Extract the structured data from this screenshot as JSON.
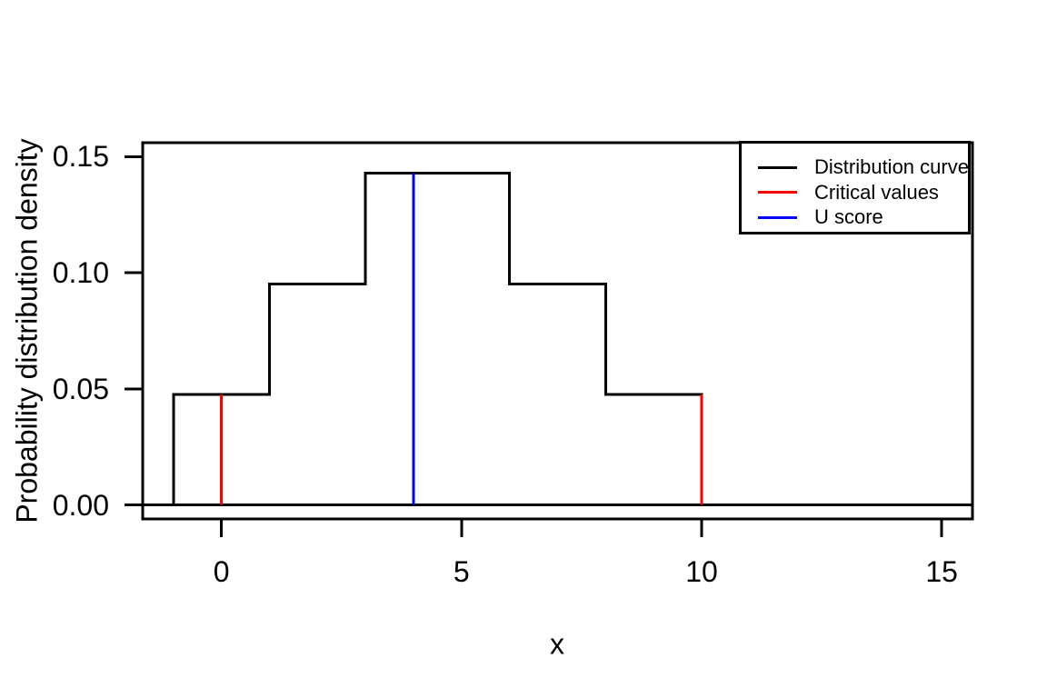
{
  "figure": {
    "background": "#ffffff",
    "title": ""
  },
  "axes": {
    "x": {
      "title": "x",
      "tick_labels": [
        "0",
        "5",
        "10",
        "15"
      ]
    },
    "y": {
      "title": "Probability distribution density",
      "tick_labels": [
        "0.00",
        "0.05",
        "0.10",
        "0.15"
      ]
    }
  },
  "legend": {
    "position": "topright",
    "items": [
      {
        "label": "Distribution curve",
        "color": "#000000",
        "icon": "line-sample"
      },
      {
        "label": "Critical values",
        "color": "#ff0000",
        "icon": "line-sample"
      },
      {
        "label": "U score",
        "color": "#0000ff",
        "icon": "line-sample"
      }
    ]
  },
  "chart_data": {
    "type": "line",
    "subtype": "step-density",
    "title": "",
    "xlabel": "x",
    "ylabel": "Probability distribution density",
    "xlim": [
      -1.64,
      15.64
    ],
    "ylim": [
      -0.006,
      0.156
    ],
    "grid": false,
    "legend_position": "topright",
    "x_ticks": {
      "values": [
        0,
        5,
        10,
        15
      ],
      "labels": [
        "0",
        "5",
        "10",
        "15"
      ]
    },
    "y_ticks": {
      "values": [
        0,
        0.05,
        0.1,
        0.15
      ],
      "labels": [
        "0.00",
        "0.05",
        "0.10",
        "0.15"
      ]
    },
    "series": [
      {
        "name": "Distribution curve",
        "color": "#000000",
        "kind": "step-line",
        "points": [
          [
            -1,
            0
          ],
          [
            -1,
            0.0476
          ],
          [
            1,
            0.0476
          ],
          [
            1,
            0.0952
          ],
          [
            3,
            0.0952
          ],
          [
            3,
            0.1429
          ],
          [
            6,
            0.1429
          ],
          [
            6,
            0.0952
          ],
          [
            8,
            0.0952
          ],
          [
            8,
            0.0476
          ],
          [
            10,
            0.0476
          ],
          [
            10,
            0
          ]
        ]
      },
      {
        "name": "Zero baseline",
        "color": "#000000",
        "kind": "hline",
        "y": 0
      },
      {
        "name": "Critical values",
        "color": "#ff0000",
        "kind": "vlines",
        "lines": [
          {
            "x": 0,
            "y0": 0,
            "y1": 0.0476
          },
          {
            "x": 10,
            "y0": 0,
            "y1": 0.0476
          }
        ]
      },
      {
        "name": "U score",
        "color": "#0000ff",
        "kind": "vlines",
        "lines": [
          {
            "x": 4,
            "y0": 0,
            "y1": 0.1429
          }
        ]
      }
    ]
  }
}
